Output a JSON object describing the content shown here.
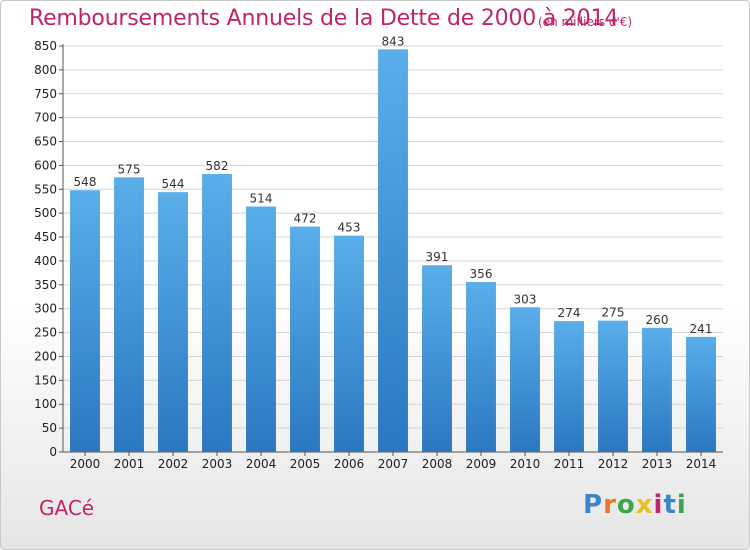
{
  "chart_data": {
    "type": "bar",
    "title": "Remboursements Annuels de la Dette de 2000 à 2014",
    "subtitle": "(en milliers d'€)",
    "categories": [
      "2000",
      "2001",
      "2002",
      "2003",
      "2004",
      "2005",
      "2006",
      "2007",
      "2008",
      "2009",
      "2010",
      "2011",
      "2012",
      "2013",
      "2014"
    ],
    "values": [
      548,
      575,
      544,
      582,
      514,
      472,
      453,
      843,
      391,
      356,
      303,
      274,
      275,
      260,
      241
    ],
    "ylim": [
      0,
      850
    ],
    "yticks": [
      0,
      50,
      100,
      150,
      200,
      250,
      300,
      350,
      400,
      450,
      500,
      550,
      600,
      650,
      700,
      750,
      800,
      850
    ],
    "grid": true,
    "bar_color": "#3d8fd8",
    "title_color": "#c0246a"
  },
  "footer": {
    "commune": "GACé",
    "logo_letters": [
      {
        "ch": "P",
        "color": "#3a86c8"
      },
      {
        "ch": "r",
        "color": "#e8772a"
      },
      {
        "ch": "o",
        "color": "#3aa64a"
      },
      {
        "ch": "x",
        "color": "#e8c21e"
      },
      {
        "ch": "i",
        "color": "#c0246a"
      },
      {
        "ch": "t",
        "color": "#3a86c8"
      },
      {
        "ch": "i",
        "color": "#3aa64a"
      }
    ]
  }
}
